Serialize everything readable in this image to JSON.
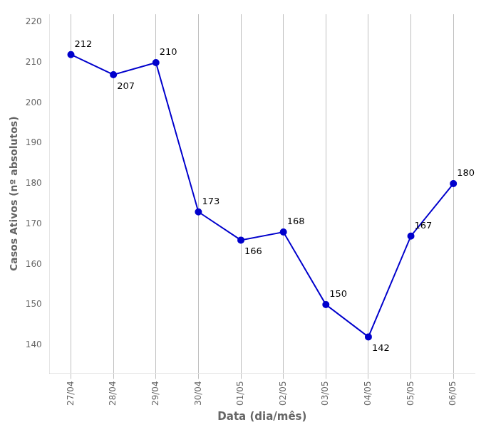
{
  "chart_data": {
    "type": "line",
    "xlabel": "Data (dia/mês)",
    "ylabel": "Casos Ativos (nº absolutos)",
    "categories": [
      "27/04",
      "28/04",
      "29/04",
      "30/04",
      "01/05",
      "02/05",
      "03/05",
      "04/05",
      "05/05",
      "06/05"
    ],
    "values": [
      212,
      207,
      210,
      173,
      166,
      168,
      150,
      142,
      167,
      180
    ],
    "color": "#0000CC",
    "marker": "circle",
    "line_style": "solid",
    "ylim": [
      133,
      222
    ],
    "yticks": [
      140,
      150,
      160,
      170,
      180,
      190,
      200,
      210,
      220
    ],
    "grid": "x",
    "data_labels": true
  }
}
